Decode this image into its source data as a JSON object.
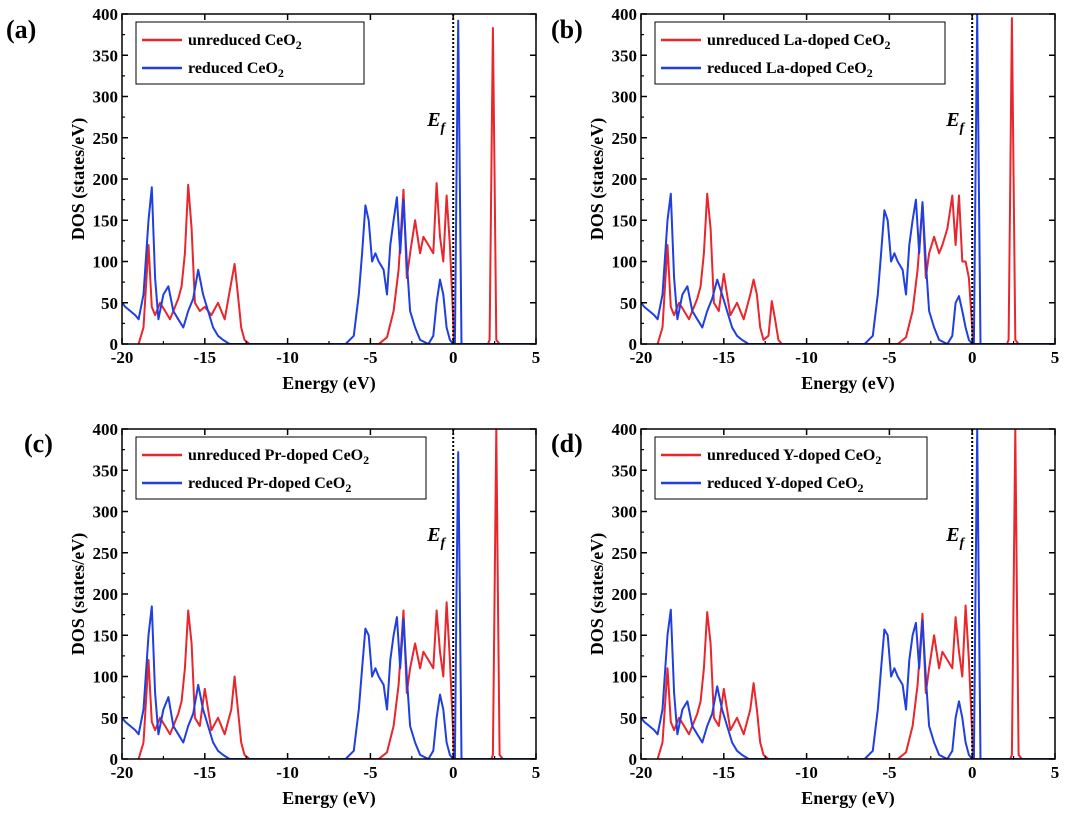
{
  "chart_data": [
    {
      "type": "line",
      "panel_label": "(a)",
      "xlabel": "Energy (eV)",
      "ylabel": "DOS (states/eV)",
      "xlim": [
        -20,
        5
      ],
      "ylim": [
        0,
        400
      ],
      "xticks": [
        -20,
        -15,
        -10,
        -5,
        0,
        5
      ],
      "yticks": [
        0,
        50,
        100,
        150,
        200,
        250,
        300,
        350,
        400
      ],
      "annotation": {
        "text": "E",
        "sub": "f",
        "x": 0
      },
      "legend_position": "top-left",
      "series": [
        {
          "name": "unreduced CeO",
          "name_sub": "2",
          "color": "#e8262b",
          "x": [
            -19.0,
            -18.7,
            -18.4,
            -18.2,
            -18.0,
            -17.7,
            -17.4,
            -17.1,
            -16.8,
            -16.6,
            -16.4,
            -16.2,
            -16.0,
            -15.8,
            -15.6,
            -15.3,
            -15.0,
            -14.6,
            -14.2,
            -13.8,
            -13.4,
            -13.2,
            -13.0,
            -12.8,
            -12.6,
            -12.3,
            -12.0,
            -6.0,
            -4.5,
            -4.0,
            -3.6,
            -3.3,
            -3.0,
            -2.8,
            -2.6,
            -2.3,
            -2.0,
            -1.8,
            -1.5,
            -1.2,
            -1.0,
            -0.8,
            -0.6,
            -0.4,
            -0.2,
            0.0,
            0.05,
            1.9,
            2.1,
            2.2,
            2.3,
            2.4,
            2.5,
            2.6,
            2.8,
            5.0
          ],
          "y": [
            0,
            20,
            120,
            45,
            35,
            50,
            40,
            30,
            45,
            55,
            70,
            110,
            193,
            140,
            50,
            40,
            45,
            35,
            50,
            30,
            75,
            97,
            60,
            20,
            5,
            0,
            0,
            0,
            0,
            8,
            40,
            90,
            187,
            80,
            110,
            150,
            110,
            130,
            120,
            110,
            195,
            130,
            100,
            180,
            120,
            30,
            0,
            0,
            0,
            5,
            200,
            383,
            200,
            5,
            0,
            0
          ]
        },
        {
          "name": "reduced CeO",
          "name_sub": "2",
          "color": "#1f3fe0",
          "x": [
            -20.0,
            -19.8,
            -19.5,
            -19.2,
            -19.0,
            -18.7,
            -18.4,
            -18.2,
            -18.0,
            -17.8,
            -17.5,
            -17.2,
            -16.9,
            -16.6,
            -16.3,
            -16.0,
            -15.7,
            -15.4,
            -15.1,
            -14.8,
            -14.5,
            -14.2,
            -13.9,
            -13.5,
            -13.0,
            -12.0,
            -6.5,
            -6.0,
            -5.7,
            -5.5,
            -5.3,
            -5.1,
            -4.9,
            -4.7,
            -4.5,
            -4.2,
            -4.0,
            -3.8,
            -3.6,
            -3.4,
            -3.2,
            -3.0,
            -2.8,
            -2.6,
            -2.3,
            -2.0,
            -1.5,
            -1.2,
            -1.0,
            -0.8,
            -0.6,
            -0.4,
            -0.2,
            0.0,
            0.1,
            0.2,
            0.3,
            0.4,
            0.5,
            5.0
          ],
          "y": [
            50,
            45,
            40,
            35,
            30,
            60,
            150,
            190,
            80,
            30,
            60,
            70,
            40,
            30,
            20,
            40,
            55,
            90,
            60,
            40,
            20,
            10,
            5,
            0,
            0,
            0,
            0,
            10,
            60,
            110,
            168,
            150,
            100,
            110,
            100,
            90,
            60,
            120,
            150,
            178,
            110,
            175,
            100,
            40,
            20,
            5,
            0,
            10,
            50,
            78,
            60,
            20,
            5,
            0,
            0,
            200,
            392,
            200,
            0,
            0
          ]
        }
      ]
    },
    {
      "type": "line",
      "panel_label": "(b)",
      "xlabel": "Energy (eV)",
      "ylabel": "DOS (states/eV)",
      "xlim": [
        -20,
        5
      ],
      "ylim": [
        0,
        400
      ],
      "xticks": [
        -20,
        -15,
        -10,
        -5,
        0,
        5
      ],
      "yticks": [
        0,
        50,
        100,
        150,
        200,
        250,
        300,
        350,
        400
      ],
      "annotation": {
        "text": "E",
        "sub": "f",
        "x": 0
      },
      "legend_position": "top-left",
      "series": [
        {
          "name": "unreduced La-doped CeO",
          "name_sub": "2",
          "color": "#e8262b",
          "x": [
            -19.0,
            -18.7,
            -18.4,
            -18.2,
            -18.0,
            -17.7,
            -17.4,
            -17.1,
            -16.8,
            -16.6,
            -16.4,
            -16.2,
            -16.0,
            -15.8,
            -15.6,
            -15.3,
            -15.0,
            -14.6,
            -14.2,
            -13.8,
            -13.4,
            -13.2,
            -13.0,
            -12.8,
            -12.6,
            -12.3,
            -12.1,
            -11.9,
            -11.7,
            -11.5,
            -6.0,
            -4.5,
            -4.0,
            -3.6,
            -3.3,
            -3.0,
            -2.8,
            -2.6,
            -2.3,
            -2.0,
            -1.8,
            -1.5,
            -1.2,
            -1.0,
            -0.8,
            -0.6,
            -0.4,
            -0.2,
            0.0,
            0.05,
            1.9,
            2.1,
            2.2,
            2.3,
            2.4,
            2.5,
            2.6,
            2.8,
            5.0
          ],
          "y": [
            0,
            20,
            120,
            45,
            35,
            50,
            40,
            30,
            45,
            55,
            70,
            110,
            182,
            140,
            50,
            40,
            85,
            35,
            50,
            30,
            60,
            78,
            60,
            20,
            5,
            10,
            52,
            30,
            5,
            0,
            0,
            0,
            8,
            40,
            90,
            170,
            80,
            110,
            130,
            110,
            120,
            140,
            180,
            120,
            180,
            100,
            100,
            80,
            20,
            0,
            0,
            0,
            5,
            200,
            395,
            200,
            5,
            0,
            0
          ]
        },
        {
          "name": "reduced La-doped CeO",
          "name_sub": "2",
          "color": "#1f3fe0",
          "x": [
            -20.0,
            -19.8,
            -19.5,
            -19.2,
            -19.0,
            -18.7,
            -18.4,
            -18.2,
            -18.0,
            -17.8,
            -17.5,
            -17.2,
            -16.9,
            -16.6,
            -16.3,
            -16.0,
            -15.7,
            -15.4,
            -15.1,
            -14.8,
            -14.5,
            -14.2,
            -13.9,
            -13.5,
            -13.0,
            -12.0,
            -6.5,
            -6.0,
            -5.7,
            -5.5,
            -5.3,
            -5.1,
            -4.9,
            -4.7,
            -4.5,
            -4.2,
            -4.0,
            -3.8,
            -3.6,
            -3.4,
            -3.2,
            -3.0,
            -2.8,
            -2.6,
            -2.3,
            -2.0,
            -1.5,
            -1.2,
            -1.0,
            -0.8,
            -0.6,
            -0.4,
            -0.2,
            0.0,
            0.1,
            0.2,
            0.3,
            0.4,
            0.5,
            5.0
          ],
          "y": [
            50,
            45,
            40,
            35,
            30,
            60,
            150,
            182,
            80,
            30,
            60,
            70,
            40,
            30,
            20,
            40,
            55,
            78,
            60,
            40,
            20,
            10,
            5,
            0,
            0,
            0,
            0,
            10,
            60,
            110,
            162,
            150,
            100,
            110,
            100,
            90,
            60,
            120,
            150,
            175,
            110,
            172,
            100,
            40,
            20,
            5,
            0,
            10,
            50,
            58,
            40,
            20,
            5,
            0,
            0,
            200,
            400,
            200,
            0,
            0
          ]
        }
      ]
    },
    {
      "type": "line",
      "panel_label": "(c)",
      "xlabel": "Energy (eV)",
      "ylabel": "DOS (states/eV)",
      "xlim": [
        -20,
        5
      ],
      "ylim": [
        0,
        400
      ],
      "xticks": [
        -20,
        -15,
        -10,
        -5,
        0,
        5
      ],
      "yticks": [
        0,
        50,
        100,
        150,
        200,
        250,
        300,
        350,
        400
      ],
      "annotation": {
        "text": "E",
        "sub": "f",
        "x": 0
      },
      "legend_position": "top-left",
      "series": [
        {
          "name": "unreduced Pr-doped CeO",
          "name_sub": "2",
          "color": "#e8262b",
          "x": [
            -19.0,
            -18.7,
            -18.4,
            -18.2,
            -18.0,
            -17.7,
            -17.4,
            -17.1,
            -16.8,
            -16.6,
            -16.4,
            -16.2,
            -16.0,
            -15.8,
            -15.6,
            -15.3,
            -15.0,
            -14.6,
            -14.2,
            -13.8,
            -13.4,
            -13.2,
            -13.0,
            -12.8,
            -12.6,
            -12.3,
            -12.0,
            -6.0,
            -4.5,
            -4.0,
            -3.6,
            -3.3,
            -3.0,
            -2.8,
            -2.6,
            -2.3,
            -2.0,
            -1.8,
            -1.5,
            -1.2,
            -1.0,
            -0.8,
            -0.6,
            -0.4,
            -0.2,
            0.0,
            0.05,
            2.1,
            2.3,
            2.4,
            2.5,
            2.6,
            2.7,
            2.8,
            3.0,
            5.0
          ],
          "y": [
            0,
            20,
            120,
            45,
            35,
            50,
            40,
            30,
            45,
            55,
            70,
            110,
            180,
            140,
            50,
            40,
            85,
            35,
            50,
            30,
            60,
            100,
            60,
            20,
            5,
            0,
            0,
            0,
            0,
            8,
            40,
            90,
            180,
            80,
            110,
            140,
            110,
            130,
            120,
            110,
            180,
            130,
            100,
            190,
            120,
            30,
            0,
            0,
            0,
            5,
            200,
            400,
            200,
            5,
            0,
            0
          ]
        },
        {
          "name": "reduced Pr-doped CeO",
          "name_sub": "2",
          "color": "#1f3fe0",
          "x": [
            -20.0,
            -19.8,
            -19.5,
            -19.2,
            -19.0,
            -18.7,
            -18.4,
            -18.2,
            -18.0,
            -17.8,
            -17.5,
            -17.2,
            -16.9,
            -16.6,
            -16.3,
            -16.0,
            -15.7,
            -15.4,
            -15.1,
            -14.8,
            -14.5,
            -14.2,
            -13.9,
            -13.5,
            -13.0,
            -12.0,
            -6.5,
            -6.0,
            -5.7,
            -5.5,
            -5.3,
            -5.1,
            -4.9,
            -4.7,
            -4.5,
            -4.2,
            -4.0,
            -3.8,
            -3.6,
            -3.4,
            -3.2,
            -3.0,
            -2.8,
            -2.6,
            -2.3,
            -2.0,
            -1.5,
            -1.2,
            -1.0,
            -0.8,
            -0.6,
            -0.4,
            -0.2,
            0.0,
            0.1,
            0.2,
            0.3,
            0.4,
            0.5,
            5.0
          ],
          "y": [
            50,
            45,
            40,
            35,
            30,
            60,
            150,
            185,
            80,
            30,
            60,
            75,
            40,
            30,
            20,
            40,
            55,
            90,
            60,
            40,
            20,
            10,
            5,
            0,
            0,
            0,
            0,
            10,
            60,
            110,
            158,
            150,
            100,
            110,
            100,
            90,
            60,
            120,
            150,
            172,
            110,
            170,
            100,
            40,
            20,
            5,
            0,
            10,
            50,
            78,
            60,
            20,
            5,
            0,
            0,
            200,
            372,
            200,
            0,
            0
          ]
        }
      ]
    },
    {
      "type": "line",
      "panel_label": "(d)",
      "xlabel": "Energy (eV)",
      "ylabel": "DOS (states/eV)",
      "xlim": [
        -20,
        5
      ],
      "ylim": [
        0,
        400
      ],
      "xticks": [
        -20,
        -15,
        -10,
        -5,
        0,
        5
      ],
      "yticks": [
        0,
        50,
        100,
        150,
        200,
        250,
        300,
        350,
        400
      ],
      "annotation": {
        "text": "E",
        "sub": "f",
        "x": 0
      },
      "legend_position": "top-left",
      "series": [
        {
          "name": "unreduced Y-doped CeO",
          "name_sub": "2",
          "color": "#e8262b",
          "x": [
            -19.0,
            -18.7,
            -18.4,
            -18.2,
            -18.0,
            -17.7,
            -17.4,
            -17.1,
            -16.8,
            -16.6,
            -16.4,
            -16.2,
            -16.0,
            -15.8,
            -15.6,
            -15.3,
            -15.0,
            -14.6,
            -14.2,
            -13.8,
            -13.4,
            -13.2,
            -13.0,
            -12.8,
            -12.6,
            -12.3,
            -12.0,
            -6.0,
            -4.5,
            -4.0,
            -3.6,
            -3.3,
            -3.0,
            -2.8,
            -2.6,
            -2.3,
            -2.0,
            -1.8,
            -1.5,
            -1.2,
            -1.0,
            -0.8,
            -0.6,
            -0.4,
            -0.2,
            0.0,
            0.05,
            2.1,
            2.3,
            2.4,
            2.5,
            2.6,
            2.7,
            2.8,
            3.0,
            5.0
          ],
          "y": [
            0,
            20,
            110,
            45,
            35,
            50,
            40,
            30,
            45,
            55,
            70,
            110,
            178,
            140,
            50,
            40,
            85,
            35,
            50,
            30,
            60,
            92,
            60,
            20,
            5,
            0,
            0,
            0,
            0,
            8,
            40,
            90,
            176,
            80,
            110,
            150,
            110,
            130,
            120,
            110,
            172,
            130,
            100,
            186,
            120,
            30,
            0,
            0,
            0,
            5,
            200,
            400,
            200,
            5,
            0,
            0
          ]
        },
        {
          "name": "reduced Y-doped CeO",
          "name_sub": "2",
          "color": "#1f3fe0",
          "x": [
            -20.0,
            -19.8,
            -19.5,
            -19.2,
            -19.0,
            -18.7,
            -18.4,
            -18.2,
            -18.0,
            -17.8,
            -17.5,
            -17.2,
            -16.9,
            -16.6,
            -16.3,
            -16.0,
            -15.7,
            -15.4,
            -15.1,
            -14.8,
            -14.5,
            -14.2,
            -13.9,
            -13.5,
            -13.0,
            -12.0,
            -6.5,
            -6.0,
            -5.7,
            -5.5,
            -5.3,
            -5.1,
            -4.9,
            -4.7,
            -4.5,
            -4.2,
            -4.0,
            -3.8,
            -3.6,
            -3.4,
            -3.2,
            -3.0,
            -2.8,
            -2.6,
            -2.3,
            -2.0,
            -1.5,
            -1.2,
            -1.0,
            -0.8,
            -0.6,
            -0.4,
            -0.2,
            0.0,
            0.1,
            0.2,
            0.3,
            0.4,
            0.5,
            5.0
          ],
          "y": [
            50,
            45,
            40,
            35,
            30,
            60,
            150,
            181,
            80,
            30,
            60,
            70,
            40,
            30,
            20,
            40,
            55,
            88,
            60,
            40,
            20,
            10,
            5,
            0,
            0,
            0,
            0,
            10,
            60,
            110,
            157,
            150,
            100,
            110,
            100,
            90,
            60,
            120,
            150,
            165,
            110,
            168,
            100,
            40,
            20,
            5,
            0,
            10,
            50,
            70,
            50,
            20,
            5,
            0,
            0,
            200,
            400,
            200,
            0,
            0
          ]
        }
      ]
    }
  ]
}
